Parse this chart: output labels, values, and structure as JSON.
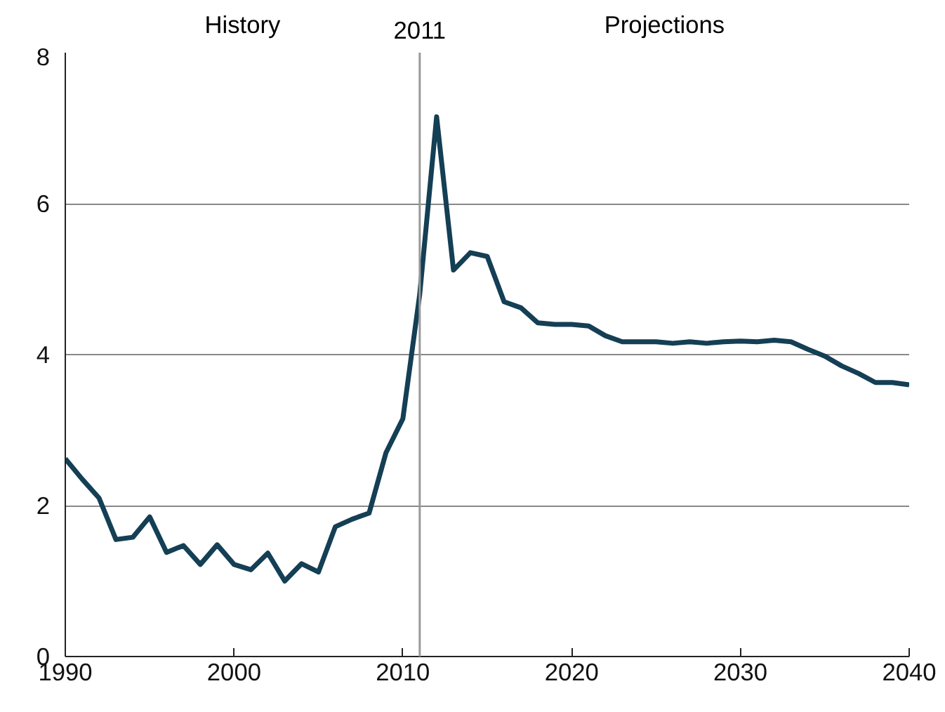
{
  "chart_data": {
    "type": "line",
    "x": [
      1990,
      1991,
      1992,
      1993,
      1994,
      1995,
      1996,
      1997,
      1998,
      1999,
      2000,
      2001,
      2002,
      2003,
      2004,
      2005,
      2006,
      2007,
      2008,
      2009,
      2010,
      2011,
      2012,
      2013,
      2014,
      2015,
      2016,
      2017,
      2018,
      2019,
      2020,
      2021,
      2022,
      2023,
      2024,
      2025,
      2026,
      2027,
      2028,
      2029,
      2030,
      2031,
      2032,
      2033,
      2034,
      2035,
      2036,
      2037,
      2038,
      2039,
      2040
    ],
    "series": [
      {
        "color": "#143f55",
        "values": [
          2.62,
          2.35,
          2.1,
          1.55,
          1.58,
          1.85,
          1.38,
          1.47,
          1.22,
          1.48,
          1.22,
          1.15,
          1.37,
          1.0,
          1.23,
          1.12,
          1.72,
          1.82,
          1.9,
          2.7,
          3.15,
          4.8,
          7.15,
          5.12,
          5.35,
          5.3,
          4.7,
          4.62,
          4.42,
          4.4,
          4.4,
          4.38,
          4.25,
          4.17,
          4.17,
          4.17,
          4.15,
          4.17,
          4.15,
          4.17,
          4.18,
          4.17,
          4.19,
          4.17,
          4.07,
          3.98,
          3.85,
          3.75,
          3.63,
          3.63,
          3.6
        ]
      }
    ],
    "xlim": [
      1990,
      2040
    ],
    "xticks": [
      1990,
      2000,
      2010,
      2020,
      2030,
      2040
    ],
    "ylim": [
      0,
      8
    ],
    "yticks": [
      0,
      2,
      4,
      6,
      8
    ],
    "grid": "y",
    "marker": "none",
    "line_style": "solid",
    "ref_lines": [
      {
        "axis": "x",
        "value": 2011,
        "label": "2011",
        "color": "#999999"
      }
    ],
    "annotations": [
      "History",
      "Projections"
    ]
  }
}
